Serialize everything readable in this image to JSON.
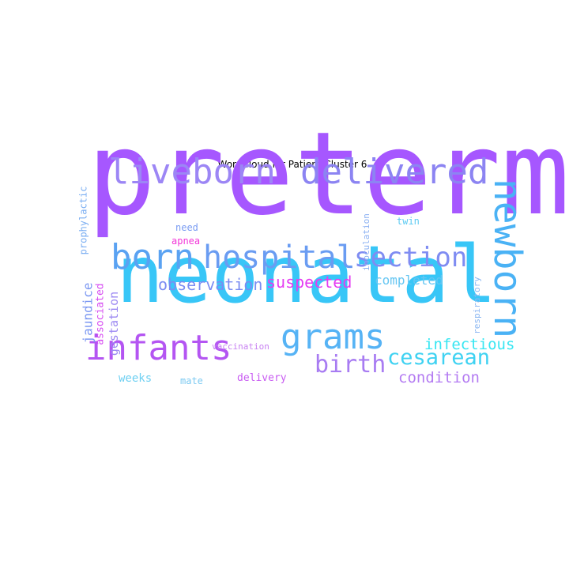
{
  "title": "WordCloud for Patient Cluster 6",
  "words": [
    {
      "text": "preterm",
      "color": "#a657ff"
    },
    {
      "text": "neonatal",
      "color": "#38c6f7"
    },
    {
      "text": "liveborn",
      "color": "#9c86f5"
    },
    {
      "text": "delivered",
      "color": "#8c84f2"
    },
    {
      "text": "newborn",
      "color": "#4ab2f5"
    },
    {
      "text": "born",
      "color": "#5aa2f2"
    },
    {
      "text": "hospital",
      "color": "#6a9cf2"
    },
    {
      "text": "section",
      "color": "#7f8cf2"
    },
    {
      "text": "infants",
      "color": "#b455f2"
    },
    {
      "text": "grams",
      "color": "#56b3f5"
    },
    {
      "text": "birth",
      "color": "#a87cf2"
    },
    {
      "text": "cesarean",
      "color": "#3fd2f2"
    },
    {
      "text": "observation",
      "color": "#7a8cf2"
    },
    {
      "text": "suspected",
      "color": "#e43cf2"
    },
    {
      "text": "completed",
      "color": "#66c6f2"
    },
    {
      "text": "infectious",
      "color": "#36e6f2"
    },
    {
      "text": "condition",
      "color": "#b47cf2"
    },
    {
      "text": "jaundice",
      "color": "#7c98f2"
    },
    {
      "text": "associated",
      "color": "#d64cf2"
    },
    {
      "text": "gestation",
      "color": "#9c88f2"
    },
    {
      "text": "prophylactic",
      "color": "#7aaef2"
    },
    {
      "text": "need",
      "color": "#7a9cf2"
    },
    {
      "text": "apnea",
      "color": "#f236d8"
    },
    {
      "text": "inoculation",
      "color": "#8ab0f2"
    },
    {
      "text": "twin",
      "color": "#5ccaf2"
    },
    {
      "text": "respiratory",
      "color": "#8ab6f2"
    },
    {
      "text": "vaccination",
      "color": "#c882f2"
    },
    {
      "text": "weeks",
      "color": "#6fd0f2"
    },
    {
      "text": "mate",
      "color": "#7ccaf2"
    },
    {
      "text": "delivery",
      "color": "#c95df2"
    }
  ]
}
